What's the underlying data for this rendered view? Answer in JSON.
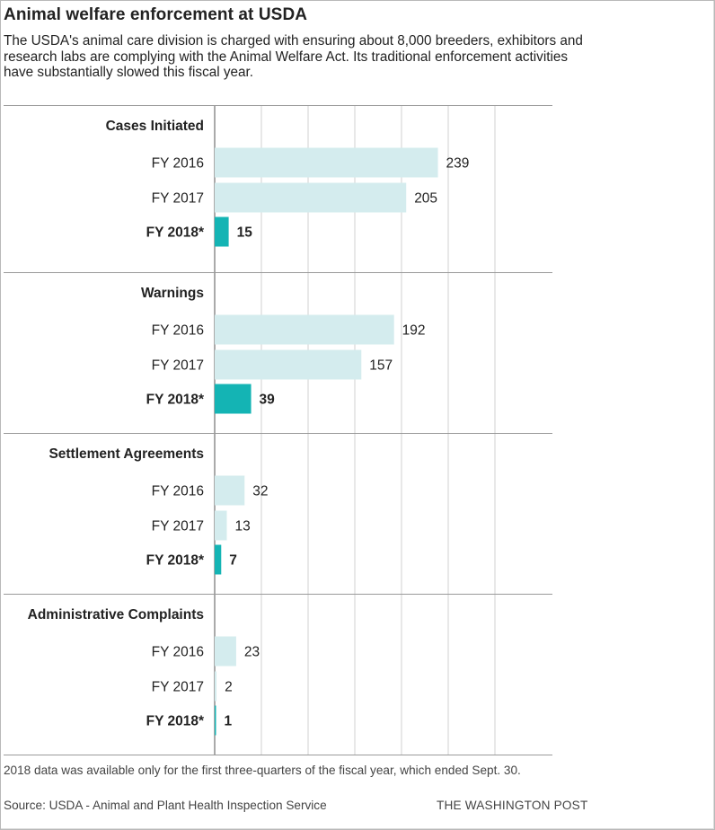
{
  "title": "Animal welfare enforcement at USDA",
  "subtitle": "The USDA's animal care division is charged with ensuring about 8,000 breeders, exhibitors and research labs are complying with the Animal Welfare Act. Its traditional enforcement activities have substantially slowed this fiscal year.",
  "footnote": "2018 data was available only for the first three-quarters of the fiscal year, which ended Sept. 30.",
  "source": "Source: USDA - Animal and Plant Health Inspection Service",
  "credit": "THE WASHINGTON POST",
  "colors": {
    "past": "#d4ecee",
    "current": "#14b4b4",
    "grid": "#d2d2d2",
    "divider": "#9a9a9a",
    "text": "#222222"
  },
  "chart_data": {
    "type": "bar",
    "orientation": "horizontal",
    "xlim": [
      0,
      300
    ],
    "gridlines": [
      0,
      50,
      100,
      150,
      200,
      250,
      300
    ],
    "legend": "none",
    "groups": [
      {
        "name": "Cases Initiated",
        "rows": [
          {
            "label": "FY 2016",
            "value": 239,
            "highlight": false
          },
          {
            "label": "FY 2017",
            "value": 205,
            "highlight": false
          },
          {
            "label": "FY 2018*",
            "value": 15,
            "highlight": true
          }
        ]
      },
      {
        "name": "Warnings",
        "rows": [
          {
            "label": "FY 2016",
            "value": 192,
            "highlight": false
          },
          {
            "label": "FY 2017",
            "value": 157,
            "highlight": false
          },
          {
            "label": "FY 2018*",
            "value": 39,
            "highlight": true
          }
        ]
      },
      {
        "name": "Settlement Agreements",
        "rows": [
          {
            "label": "FY 2016",
            "value": 32,
            "highlight": false
          },
          {
            "label": "FY 2017",
            "value": 13,
            "highlight": false
          },
          {
            "label": "FY 2018*",
            "value": 7,
            "highlight": true
          }
        ]
      },
      {
        "name": "Administrative Complaints",
        "rows": [
          {
            "label": "FY 2016",
            "value": 23,
            "highlight": false
          },
          {
            "label": "FY 2017",
            "value": 2,
            "highlight": false
          },
          {
            "label": "FY 2018*",
            "value": 1,
            "highlight": true
          }
        ]
      }
    ]
  }
}
